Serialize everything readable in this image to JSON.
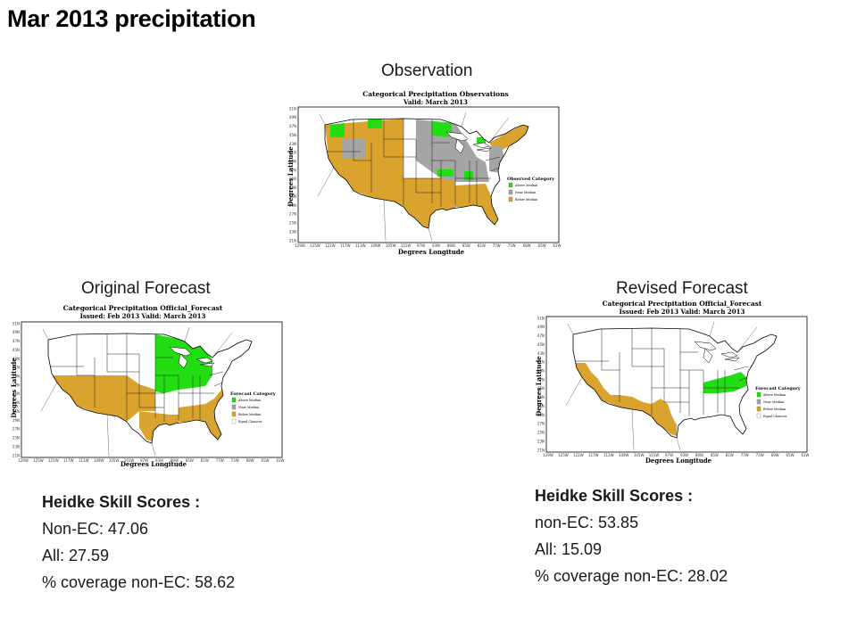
{
  "page_title": "Mar 2013 precipitation",
  "colors": {
    "above": "#22dd11",
    "near": "#a5a5a5",
    "below": "#daa32d",
    "equal": "#ffffff",
    "outline": "#000000"
  },
  "axis": {
    "ylabel": "Degrees Latitude",
    "xlabel": "Degrees Longitude",
    "lat_ticks": [
      "51N",
      "49N",
      "47N",
      "45N",
      "43N",
      "41N",
      "39N",
      "37N",
      "35N",
      "33N",
      "31N",
      "29N",
      "27N",
      "25N",
      "23N",
      "21N"
    ],
    "lon_ticks": [
      "129W",
      "125W",
      "121W",
      "117W",
      "113W",
      "109W",
      "105W",
      "101W",
      "97W",
      "93W",
      "89W",
      "85W",
      "81W",
      "77W",
      "73W",
      "69W",
      "65W",
      "61W"
    ]
  },
  "panels": {
    "observation": {
      "section_label": "Observation",
      "map_title": "Categorical Precipitation Observations",
      "map_subtitle": "Valid: March 2013",
      "legend_title": "Observed Category",
      "legend": [
        {
          "label": "Above Median",
          "category": "above"
        },
        {
          "label": "Near Median",
          "category": "near"
        },
        {
          "label": "Below Median",
          "category": "below"
        }
      ]
    },
    "original": {
      "section_label": "Original Forecast",
      "map_title": "Categorical Precipitation Official_Forecast",
      "map_subtitle": "Issued: Feb 2013 Valid: March 2013",
      "legend_title": "Forecast Category",
      "legend": [
        {
          "label": "Above Median",
          "category": "above"
        },
        {
          "label": "Near Median",
          "category": "near"
        },
        {
          "label": "Below Median",
          "category": "below"
        },
        {
          "label": "Equal Chances",
          "category": "equal"
        }
      ]
    },
    "revised": {
      "section_label": "Revised Forecast",
      "map_title": "Categorical Precipitation Official_Forecast",
      "map_subtitle": "Issued: Feb 2013 Valid: March 2013",
      "legend_title": "Forecast Category",
      "legend": [
        {
          "label": "Above Median",
          "category": "above"
        },
        {
          "label": "Near Median",
          "category": "near"
        },
        {
          "label": "Below Median",
          "category": "below"
        },
        {
          "label": "Equal Chances",
          "category": "equal"
        }
      ]
    }
  },
  "scores_original": {
    "heading": "Heidke Skill Scores :",
    "line1": "Non-EC: 47.06",
    "line2": "All: 27.59",
    "line3": "% coverage non-EC: 58.62"
  },
  "scores_revised": {
    "heading": "Heidke Skill Scores :",
    "line1": "non-EC: 53.85",
    "line2": "All: 15.09",
    "line3": "% coverage non-EC: 28.02"
  }
}
